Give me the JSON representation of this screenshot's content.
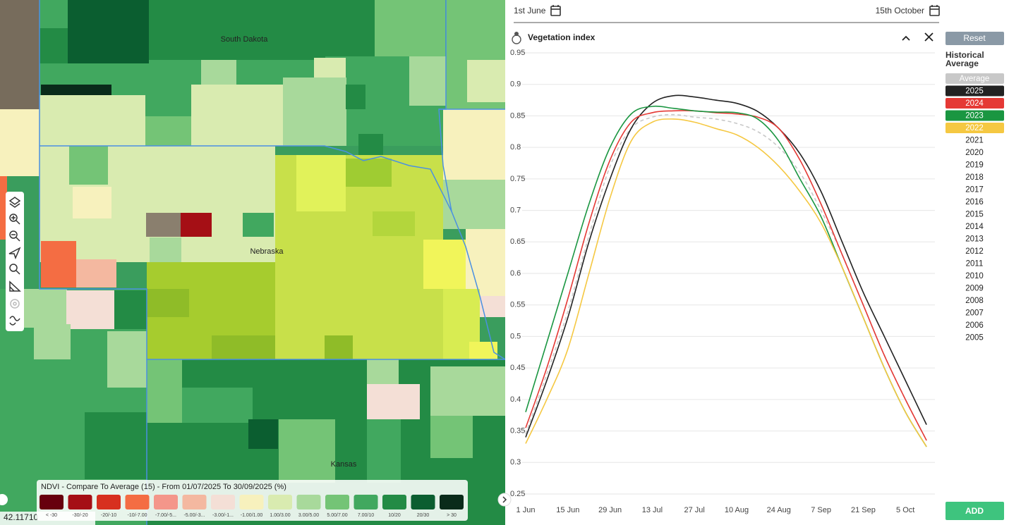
{
  "map": {
    "labels": [
      "South Dakota",
      "Nebraska",
      "Kansas"
    ],
    "coordinates": "42.11710",
    "legend": {
      "title": "NDVI - Compare To Average (15) - From 01/07/2025 To 30/09/2025 (%)",
      "items": [
        {
          "label": "< -30",
          "color": "#67000d"
        },
        {
          "label": "-30/-20",
          "color": "#a50f15"
        },
        {
          "label": "-20/-10",
          "color": "#d7301f"
        },
        {
          "label": "-10/-7.00",
          "color": "#f46d43"
        },
        {
          "label": "-7.00/-5...",
          "color": "#f4968a"
        },
        {
          "label": "-5.00/-3...",
          "color": "#f4b8a0"
        },
        {
          "label": "-3.00/-1...",
          "color": "#f4dfd6"
        },
        {
          "label": "-1.00/1.00",
          "color": "#f7f1bd"
        },
        {
          "label": "1.00/3.00",
          "color": "#d9ebb0"
        },
        {
          "label": "3.00/5.00",
          "color": "#a8d99b"
        },
        {
          "label": "5.00/7.00",
          "color": "#74c476"
        },
        {
          "label": "7.00/10",
          "color": "#41a85f"
        },
        {
          "label": "10/20",
          "color": "#238b45"
        },
        {
          "label": "20/30",
          "color": "#0b5e30"
        },
        {
          "label": "> 30",
          "color": "#0a2b1a"
        }
      ]
    }
  },
  "panel": {
    "date_from": "1st June",
    "date_to": "15th October",
    "title": "Vegetation index"
  },
  "sidebar": {
    "reset": "Reset",
    "heading": "Historical Average",
    "years": [
      "2021",
      "2020",
      "2019",
      "2018",
      "2017",
      "2016",
      "2015",
      "2014",
      "2013",
      "2012",
      "2011",
      "2010",
      "2009",
      "2008",
      "2007",
      "2006",
      "2005"
    ],
    "add": "ADD"
  },
  "chart_data": {
    "type": "line",
    "categories": [
      "1 Jun",
      null,
      "15 Jun",
      null,
      "29 Jun",
      null,
      "13 Jul",
      null,
      "27 Jul",
      null,
      "10 Aug",
      null,
      "24 Aug",
      null,
      "7 Sep",
      null,
      "21 Sep",
      null,
      "5 Oct",
      null
    ],
    "ylim": [
      0.25,
      0.95
    ],
    "yticks": [
      0.25,
      0.3,
      0.35,
      0.4,
      0.45,
      0.5,
      0.55,
      0.6,
      0.65,
      0.7,
      0.75,
      0.8,
      0.85,
      0.9,
      0.95
    ],
    "grid": true,
    "series": [
      {
        "name": "Average",
        "color": "#c8c8c8",
        "dashed": true,
        "values": [
          0.345,
          0.44,
          0.54,
          0.66,
          0.77,
          0.83,
          0.848,
          0.852,
          0.848,
          0.845,
          0.838,
          0.825,
          0.8,
          0.76,
          0.7,
          0.63,
          0.55,
          0.47,
          0.4,
          0.335
        ]
      },
      {
        "name": "2025",
        "color": "#222222",
        "values": [
          0.34,
          0.43,
          0.53,
          0.65,
          0.75,
          0.83,
          0.87,
          0.882,
          0.88,
          0.875,
          0.87,
          0.857,
          0.83,
          0.79,
          0.73,
          0.65,
          0.57,
          0.5,
          0.43,
          0.36
        ]
      },
      {
        "name": "2024",
        "color": "#e53935",
        "values": [
          0.355,
          0.45,
          0.56,
          0.68,
          0.78,
          0.84,
          0.855,
          0.858,
          0.858,
          0.855,
          0.853,
          0.848,
          0.83,
          0.78,
          0.71,
          0.63,
          0.55,
          0.47,
          0.4,
          0.335
        ]
      },
      {
        "name": "2023",
        "color": "#1a9641",
        "values": [
          0.38,
          0.49,
          0.6,
          0.71,
          0.8,
          0.853,
          0.865,
          0.862,
          0.858,
          0.856,
          0.855,
          0.845,
          0.81,
          0.75,
          0.69,
          0.61,
          0.53,
          0.45,
          0.38,
          0.325
        ]
      },
      {
        "name": "2022",
        "color": "#f5c842",
        "values": [
          0.33,
          0.4,
          0.48,
          0.6,
          0.72,
          0.81,
          0.84,
          0.845,
          0.84,
          0.83,
          0.82,
          0.8,
          0.77,
          0.73,
          0.68,
          0.61,
          0.53,
          0.45,
          0.38,
          0.325
        ]
      }
    ]
  }
}
